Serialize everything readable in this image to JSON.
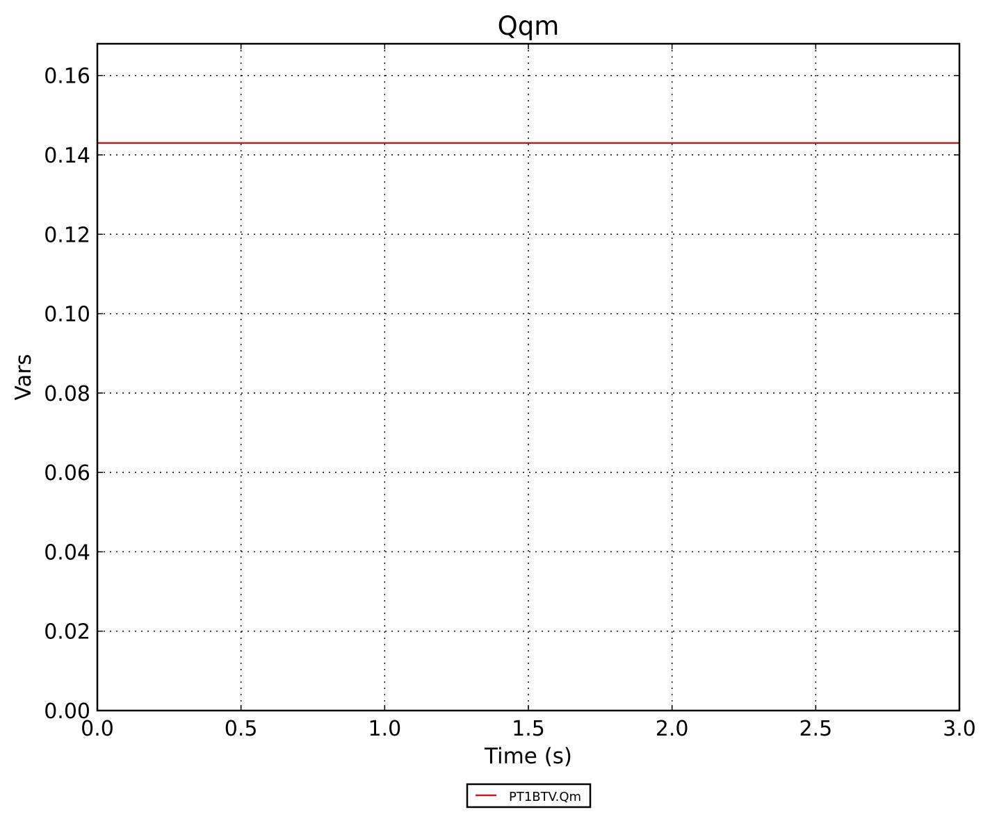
{
  "chart_data": {
    "type": "line",
    "title": "Qqm",
    "xlabel": "Time (s)",
    "ylabel": "Vars",
    "xlim": [
      0.0,
      3.0
    ],
    "ylim": [
      0.0,
      0.168
    ],
    "xticks": [
      0.0,
      0.5,
      1.0,
      1.5,
      2.0,
      2.5,
      3.0
    ],
    "xtick_labels": [
      "0.0",
      "0.5",
      "1.0",
      "1.5",
      "2.0",
      "2.5",
      "3.0"
    ],
    "yticks": [
      0.0,
      0.02,
      0.04,
      0.06,
      0.08,
      0.1,
      0.12,
      0.14,
      0.16
    ],
    "ytick_labels": [
      "0.00",
      "0.02",
      "0.04",
      "0.06",
      "0.08",
      "0.10",
      "0.12",
      "0.14",
      "0.16"
    ],
    "grid": true,
    "legend_position": "bottom-center-outside",
    "series": [
      {
        "name": "PT1BTV.Qm",
        "color": "#b22222",
        "x": [
          0.0,
          3.0
        ],
        "y": [
          0.143,
          0.143
        ]
      }
    ]
  }
}
